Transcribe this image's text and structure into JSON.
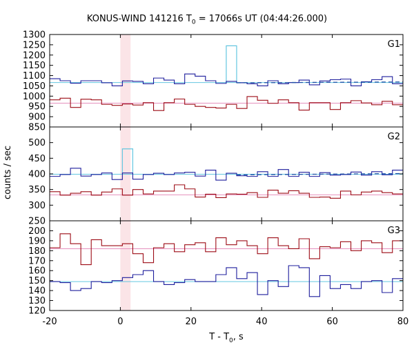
{
  "title": {
    "prefix": "KONUS-WIND 141216 T",
    "sub": "0",
    "suffix": " = 17066s UT (04:44:26.000)"
  },
  "axes": {
    "ylabel": "counts / sec",
    "xlabel_prefix": "T - T",
    "xlabel_sub": "0",
    "xlabel_suffix": ", s"
  },
  "colors": {
    "blue_series": "#1c1c9c",
    "red_series": "#9c0a14",
    "blue_level": "#63c6e0",
    "red_level": "#e58fbd",
    "fit_dashed": "#1d4fa6",
    "highlight_band": "#fbe4e7",
    "frame": "#000000"
  },
  "chart_data": {
    "type": "line",
    "step": true,
    "xlim": [
      -20,
      80
    ],
    "x_ticks": [
      -20,
      0,
      20,
      40,
      60,
      80
    ],
    "highlight_interval": [
      0,
      2.9
    ],
    "panels": [
      {
        "label": "G1",
        "ylim": [
          850,
          1300
        ],
        "y_ticks": [
          850,
          900,
          950,
          1000,
          1050,
          1100,
          1150,
          1200,
          1250,
          1300
        ],
        "bin_edges": [
          -20,
          -17.06,
          -14.12,
          -11.18,
          -8.24,
          -5.3,
          -2.36,
          0.58,
          3.52,
          6.46,
          9.4,
          12.34,
          15.28,
          18.22,
          21.16,
          24.1,
          27.04,
          29.98,
          32.92,
          35.86,
          38.8,
          41.74,
          44.68,
          47.62,
          50.56,
          53.5,
          56.44,
          59.38,
          62.32,
          65.26,
          68.2,
          71.14,
          74.08,
          77.02,
          80
        ],
        "series": [
          {
            "color_key": "blue_series",
            "values": [
              1085,
              1075,
              1063,
              1075,
              1075,
              1065,
              1050,
              1074,
              1072,
              1060,
              1088,
              1078,
              1060,
              1108,
              1097,
              1075,
              1062,
              1072,
              1065,
              1060,
              1050,
              1075,
              1060,
              1066,
              1078,
              1055,
              1074,
              1080,
              1083,
              1050,
              1070,
              1080,
              1095,
              1060
            ]
          },
          {
            "color_key": "red_series",
            "values": [
              982,
              990,
              945,
              985,
              982,
              960,
              955,
              962,
              957,
              968,
              930,
              968,
              986,
              960,
              950,
              945,
              942,
              960,
              940,
              998,
              980,
              965,
              982,
              968,
              932,
              968,
              968,
              935,
              968,
              978,
              967,
              958,
              975,
              958
            ]
          }
        ],
        "levels": [
          {
            "color_key": "blue_level",
            "y": 1066
          },
          {
            "color_key": "red_level",
            "y": 966
          }
        ],
        "spike": {
          "color_key": "blue_level",
          "x0": 29.98,
          "x1": 32.92,
          "y": 1245
        },
        "fit_dashed": {
          "x0": 32.92,
          "x1": 80,
          "y0": 1065,
          "y1": 1069
        }
      },
      {
        "label": "G2",
        "ylim": [
          250,
          550
        ],
        "y_ticks": [
          250,
          300,
          350,
          400,
          450,
          500
        ],
        "bin_edges": [
          -20,
          -17.06,
          -14.12,
          -11.18,
          -8.24,
          -5.3,
          -2.36,
          0.58,
          3.52,
          6.46,
          9.4,
          12.34,
          15.28,
          18.22,
          21.16,
          24.1,
          27.04,
          29.98,
          32.92,
          35.86,
          38.8,
          41.74,
          44.68,
          47.62,
          50.56,
          53.5,
          56.44,
          59.38,
          62.32,
          65.26,
          68.2,
          71.14,
          74.08,
          77.02,
          80
        ],
        "series": [
          {
            "color_key": "blue_series",
            "values": [
              392,
              398,
              418,
              393,
              398,
              403,
              382,
              403,
              383,
              398,
              402,
              398,
              403,
              405,
              393,
              412,
              380,
              402,
              394,
              392,
              407,
              392,
              414,
              392,
              405,
              392,
              404,
              396,
              398,
              406,
              396,
              407,
              397,
              412
            ]
          },
          {
            "color_key": "red_series",
            "values": [
              343,
              332,
              338,
              343,
              332,
              342,
              352,
              332,
              350,
              336,
              345,
              345,
              365,
              352,
              326,
              335,
              324,
              336,
              335,
              340,
              325,
              348,
              338,
              346,
              338,
              325,
              326,
              322,
              345,
              333,
              342,
              345,
              340,
              336
            ]
          }
        ],
        "levels": [
          {
            "color_key": "blue_level",
            "y": 399
          },
          {
            "color_key": "red_level",
            "y": 333
          }
        ],
        "spike": {
          "color_key": "blue_level",
          "x0": 0.58,
          "x1": 3.52,
          "y": 480
        },
        "fit_dashed": {
          "x0": 32.92,
          "x1": 80,
          "y0": 397,
          "y1": 401
        }
      },
      {
        "label": "G3",
        "ylim": [
          120,
          210
        ],
        "y_ticks": [
          120,
          130,
          140,
          150,
          160,
          170,
          180,
          190,
          200
        ],
        "bin_edges": [
          -20,
          -17.06,
          -14.12,
          -11.18,
          -8.24,
          -5.3,
          -2.36,
          0.58,
          3.52,
          6.46,
          9.4,
          12.34,
          15.28,
          18.22,
          21.16,
          24.1,
          27.04,
          29.98,
          32.92,
          35.86,
          38.8,
          41.74,
          44.68,
          47.62,
          50.56,
          53.5,
          56.44,
          59.38,
          62.32,
          65.26,
          68.2,
          71.14,
          74.08,
          77.02,
          80
        ],
        "series": [
          {
            "color_key": "blue_series",
            "values": [
              149,
              148,
              140,
              142,
              149,
              148,
              150,
              153,
              156,
              160,
              149,
              146,
              148,
              151,
              149,
              149,
              156,
              163,
              152,
              158,
              136,
              150,
              144,
              165,
              163,
              134,
              155,
              142,
              146,
              142,
              149,
              150,
              138,
              152
            ]
          },
          {
            "color_key": "red_series",
            "values": [
              183,
              197,
              187,
              166,
              191,
              185,
              185,
              187,
              177,
              168,
              183,
              187,
              179,
              186,
              188,
              179,
              193,
              186,
              190,
              185,
              177,
              193,
              185,
              182,
              192,
              172,
              184,
              183,
              189,
              180,
              190,
              188,
              178,
              190
            ]
          }
        ],
        "levels": [
          {
            "color_key": "blue_level",
            "y": 149
          },
          {
            "color_key": "red_level",
            "y": 182
          }
        ]
      }
    ]
  }
}
